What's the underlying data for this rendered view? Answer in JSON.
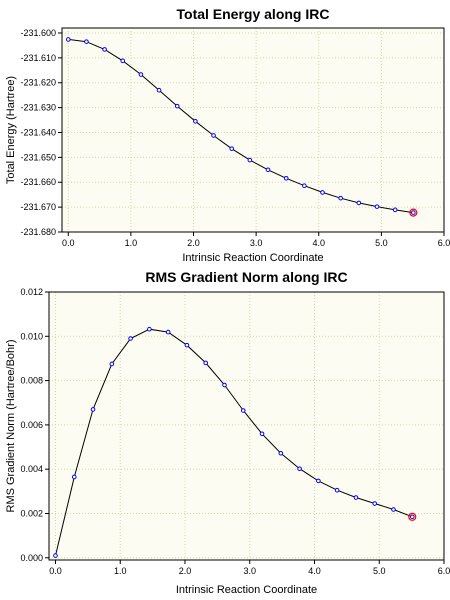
{
  "colors": {
    "background": "#ffffff",
    "plot_background": "#fcfcf2",
    "grid": "#d6d6a8",
    "line": "#000000",
    "marker": "#0000ff",
    "highlight": "#ff0000"
  },
  "chart_data": [
    {
      "type": "line",
      "title": "Total Energy along IRC",
      "xlabel": "Intrinsic Reaction Coordinate",
      "ylabel": "Total Energy (Hartree)",
      "xlim": [
        -0.1,
        6.0
      ],
      "ylim": [
        -231.68,
        -231.598
      ],
      "xticks": [
        0.0,
        1.0,
        2.0,
        3.0,
        4.0,
        5.0,
        6.0
      ],
      "xtick_labels": [
        "0.0",
        "1.0",
        "2.0",
        "3.0",
        "4.0",
        "5.0",
        "6.0"
      ],
      "yticks": [
        -231.6,
        -231.61,
        -231.62,
        -231.63,
        -231.64,
        -231.65,
        -231.66,
        -231.67,
        -231.68
      ],
      "ytick_labels": [
        "-231.600",
        "-231.610",
        "-231.620",
        "-231.630",
        "-231.640",
        "-231.650",
        "-231.660",
        "-231.670",
        "-231.680"
      ],
      "grid": true,
      "x": [
        0.0,
        0.29,
        0.58,
        0.87,
        1.16,
        1.45,
        1.74,
        2.03,
        2.32,
        2.61,
        2.9,
        3.19,
        3.48,
        3.77,
        4.06,
        4.35,
        4.64,
        4.93,
        5.22,
        5.51
      ],
      "y": [
        -231.6026,
        -231.6035,
        -231.6066,
        -231.6112,
        -231.6167,
        -231.623,
        -231.6294,
        -231.6355,
        -231.6412,
        -231.6465,
        -231.6511,
        -231.655,
        -231.6584,
        -231.6614,
        -231.6641,
        -231.6664,
        -231.6683,
        -231.6698,
        -231.6711,
        -231.6722
      ],
      "highlight_index": 19
    },
    {
      "type": "line",
      "title": "RMS Gradient Norm along IRC",
      "xlabel": "Intrinsic Reaction Coordinate",
      "ylabel": "RMS Gradient Norm (Hartree/Bohr)",
      "xlim": [
        -0.1,
        6.0
      ],
      "ylim": [
        -0.0001,
        0.012
      ],
      "xticks": [
        0.0,
        1.0,
        2.0,
        3.0,
        4.0,
        5.0,
        6.0
      ],
      "xtick_labels": [
        "0.0",
        "1.0",
        "2.0",
        "3.0",
        "4.0",
        "5.0",
        "6.0"
      ],
      "yticks": [
        0.0,
        0.002,
        0.004,
        0.006,
        0.008,
        0.01,
        0.012
      ],
      "ytick_labels": [
        "0.000",
        "0.002",
        "0.004",
        "0.006",
        "0.008",
        "0.010",
        "0.012"
      ],
      "grid": true,
      "x": [
        0.0,
        0.29,
        0.58,
        0.87,
        1.16,
        1.45,
        1.74,
        2.03,
        2.32,
        2.61,
        2.9,
        3.19,
        3.48,
        3.77,
        4.06,
        4.35,
        4.64,
        4.93,
        5.22,
        5.51
      ],
      "y": [
        0.0001,
        0.00365,
        0.0067,
        0.00875,
        0.0099,
        0.01032,
        0.01019,
        0.0096,
        0.0088,
        0.0078,
        0.00665,
        0.0056,
        0.00472,
        0.00402,
        0.00347,
        0.00305,
        0.00272,
        0.00245,
        0.00218,
        0.00185
      ],
      "highlight_index": 19
    }
  ]
}
